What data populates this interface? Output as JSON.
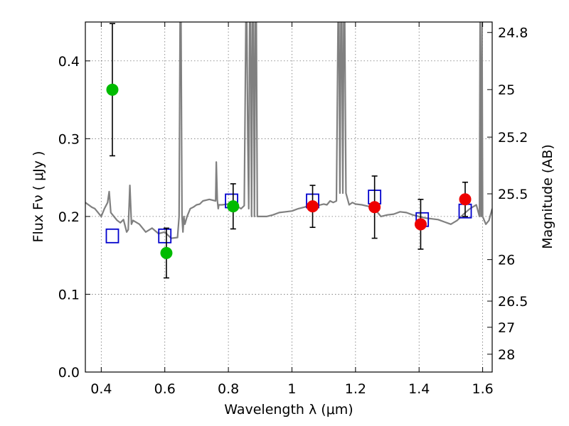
{
  "chart_data": {
    "type": "scatter",
    "title": "",
    "xlabel": "Wavelength  λ (μm)",
    "ylabel": "Flux  Fν  ( μJy )",
    "y2label": "Magnitude (AB)",
    "xlim": [
      0.35,
      1.63
    ],
    "ylim": [
      0.0,
      0.45
    ],
    "grid": true,
    "legend": "none",
    "x_ticks": [
      {
        "value": 0.4,
        "label": "0.4"
      },
      {
        "value": 0.6,
        "label": "0.6"
      },
      {
        "value": 0.8,
        "label": "0.8"
      },
      {
        "value": 1.0,
        "label": "1"
      },
      {
        "value": 1.2,
        "label": "1.2"
      },
      {
        "value": 1.4,
        "label": "1.4"
      },
      {
        "value": 1.6,
        "label": "1.6"
      }
    ],
    "y_ticks": [
      {
        "value": 0.0,
        "label": "0.0"
      },
      {
        "value": 0.1,
        "label": "0.1"
      },
      {
        "value": 0.2,
        "label": "0.2"
      },
      {
        "value": 0.3,
        "label": "0.3"
      },
      {
        "value": 0.4,
        "label": "0.4"
      }
    ],
    "y2_ticks": [
      {
        "value": 24.8,
        "label": "24.8"
      },
      {
        "value": 25.0,
        "label": "25"
      },
      {
        "value": 25.2,
        "label": "25.2"
      },
      {
        "value": 25.5,
        "label": "25.5"
      },
      {
        "value": 26.0,
        "label": "26"
      },
      {
        "value": 26.5,
        "label": "26.5"
      },
      {
        "value": 27.0,
        "label": "27"
      },
      {
        "value": 28.0,
        "label": "28"
      }
    ],
    "series": [
      {
        "type": "line",
        "color": "#808080",
        "x": [
          0.35,
          0.36,
          0.37,
          0.38,
          0.39,
          0.4,
          0.41,
          0.42,
          0.425,
          0.43,
          0.44,
          0.45,
          0.46,
          0.47,
          0.48,
          0.485,
          0.49,
          0.495,
          0.5,
          0.52,
          0.54,
          0.56,
          0.58,
          0.6,
          0.62,
          0.64,
          0.645,
          0.648,
          0.651,
          0.654,
          0.657,
          0.66,
          0.663,
          0.67,
          0.68,
          0.69,
          0.7,
          0.71,
          0.72,
          0.74,
          0.76,
          0.762,
          0.765,
          0.768,
          0.77,
          0.78,
          0.8,
          0.82,
          0.84,
          0.85,
          0.855,
          0.858,
          0.861,
          0.864,
          0.867,
          0.87,
          0.873,
          0.876,
          0.879,
          0.882,
          0.885,
          0.888,
          0.891,
          0.9,
          0.92,
          0.94,
          0.96,
          0.98,
          1.0,
          1.02,
          1.04,
          1.06,
          1.08,
          1.1,
          1.11,
          1.12,
          1.13,
          1.14,
          1.145,
          1.148,
          1.151,
          1.154,
          1.157,
          1.16,
          1.163,
          1.166,
          1.17,
          1.18,
          1.19,
          1.2,
          1.22,
          1.24,
          1.26,
          1.27,
          1.28,
          1.3,
          1.32,
          1.34,
          1.36,
          1.38,
          1.4,
          1.42,
          1.44,
          1.46,
          1.48,
          1.5,
          1.52,
          1.54,
          1.56,
          1.58,
          1.59,
          1.592,
          1.595,
          1.598,
          1.6,
          1.61,
          1.62,
          1.63
        ],
        "y": [
          0.218,
          0.215,
          0.212,
          0.21,
          0.205,
          0.2,
          0.21,
          0.218,
          0.232,
          0.205,
          0.2,
          0.195,
          0.192,
          0.196,
          0.18,
          0.183,
          0.24,
          0.19,
          0.195,
          0.19,
          0.18,
          0.185,
          0.178,
          0.18,
          0.172,
          0.173,
          0.2,
          0.45,
          0.45,
          0.2,
          0.18,
          0.2,
          0.19,
          0.2,
          0.21,
          0.212,
          0.215,
          0.216,
          0.22,
          0.222,
          0.22,
          0.27,
          0.222,
          0.21,
          0.215,
          0.215,
          0.216,
          0.215,
          0.21,
          0.214,
          0.45,
          0.45,
          0.3,
          0.21,
          0.45,
          0.45,
          0.2,
          0.45,
          0.45,
          0.2,
          0.45,
          0.45,
          0.2,
          0.2,
          0.2,
          0.202,
          0.205,
          0.206,
          0.207,
          0.21,
          0.212,
          0.215,
          0.214,
          0.216,
          0.215,
          0.22,
          0.218,
          0.22,
          0.45,
          0.45,
          0.23,
          0.45,
          0.45,
          0.23,
          0.45,
          0.45,
          0.23,
          0.215,
          0.218,
          0.216,
          0.215,
          0.213,
          0.21,
          0.205,
          0.2,
          0.202,
          0.203,
          0.206,
          0.205,
          0.202,
          0.2,
          0.198,
          0.197,
          0.196,
          0.193,
          0.19,
          0.195,
          0.203,
          0.21,
          0.215,
          0.2,
          0.45,
          0.2,
          0.45,
          0.2,
          0.19,
          0.195,
          0.21
        ]
      },
      {
        "type": "scatter",
        "marker": "square",
        "color": "#0000cc",
        "x": [
          0.435,
          0.6,
          0.81,
          1.065,
          1.26,
          1.41,
          1.545
        ],
        "y": [
          0.175,
          0.175,
          0.22,
          0.22,
          0.225,
          0.196,
          0.207
        ]
      },
      {
        "type": "scatter",
        "marker": "circle",
        "color": "#00bb00",
        "x": [
          0.435,
          0.605,
          0.815
        ],
        "y": [
          0.363,
          0.153,
          0.213
        ],
        "yerr": [
          0.085,
          0.032,
          0.029
        ]
      },
      {
        "type": "scatter",
        "marker": "circle",
        "color": "#ee0000",
        "x": [
          1.065,
          1.26,
          1.405,
          1.545
        ],
        "y": [
          0.213,
          0.212,
          0.19,
          0.222
        ],
        "yerr": [
          0.027,
          0.04,
          0.032,
          0.022
        ]
      }
    ]
  }
}
